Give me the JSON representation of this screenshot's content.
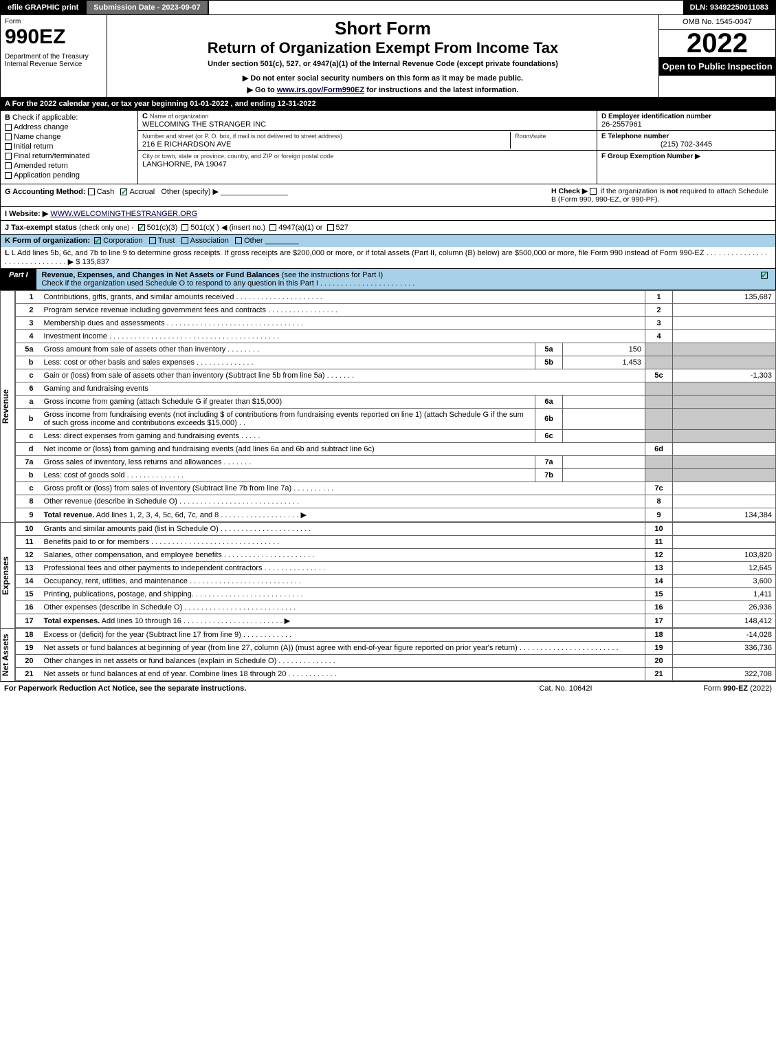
{
  "topbar": {
    "efile": "efile GRAPHIC print",
    "submission_label": "Submission Date - 2023-09-07",
    "dln": "DLN: 93492250011083"
  },
  "header": {
    "form_label": "Form",
    "form_number": "990EZ",
    "dept": "Department of the Treasury",
    "irs": "Internal Revenue Service",
    "short_form": "Short Form",
    "title": "Return of Organization Exempt From Income Tax",
    "under": "Under section 501(c), 527, or 4947(a)(1) of the Internal Revenue Code (except private foundations)",
    "warn": "▶ Do not enter social security numbers on this form as it may be made public.",
    "goto_pre": "▶ Go to ",
    "goto_link": "www.irs.gov/Form990EZ",
    "goto_post": " for instructions and the latest information.",
    "omb": "OMB No. 1545-0047",
    "year": "2022",
    "open": "Open to Public Inspection"
  },
  "lineA": "A  For the 2022 calendar year, or tax year beginning 01-01-2022 , and ending 12-31-2022",
  "secB": {
    "label": "B",
    "check_label": "Check if applicable:",
    "opts": [
      "Address change",
      "Name change",
      "Initial return",
      "Final return/terminated",
      "Amended return",
      "Application pending"
    ]
  },
  "secC": {
    "c_label": "C",
    "name_label": "Name of organization",
    "name": "WELCOMING THE STRANGER INC",
    "street_label": "Number and street (or P. O. box, if mail is not delivered to street address)",
    "room_label": "Room/suite",
    "street": "216 E RICHARDSON AVE",
    "city_label": "City or town, state or province, country, and ZIP or foreign postal code",
    "city": "LANGHORNE, PA  19047"
  },
  "secDE": {
    "d_label": "D Employer identification number",
    "ein": "26-2557961",
    "e_label": "E Telephone number",
    "phone": "(215) 702-3445",
    "f_label": "F Group Exemption Number  ▶"
  },
  "secG": {
    "label": "G Accounting Method:",
    "cash": "Cash",
    "accrual": "Accrual",
    "other": "Other (specify) ▶"
  },
  "secH": {
    "text1": "H  Check ▶",
    "text2": "if the organization is ",
    "not": "not",
    "text3": " required to attach Schedule B (Form 990, 990-EZ, or 990-PF)."
  },
  "secI": {
    "label": "I Website: ▶",
    "url": "WWW.WELCOMINGTHESTRANGER.ORG"
  },
  "secJ": {
    "label": "J Tax-exempt status",
    "sub": "(check only one) -",
    "o1": "501(c)(3)",
    "o2": "501(c)(  ) ◀ (insert no.)",
    "o3": "4947(a)(1) or",
    "o4": "527"
  },
  "secK": {
    "label": "K Form of organization:",
    "o1": "Corporation",
    "o2": "Trust",
    "o3": "Association",
    "o4": "Other"
  },
  "secL": {
    "text": "L Add lines 5b, 6c, and 7b to line 9 to determine gross receipts. If gross receipts are $200,000 or more, or if total assets (Part II, column (B) below) are $500,000 or more, file Form 990 instead of Form 990-EZ . . . . . . . . . . . . . . . . . . . . . . . . . . . . . . ▶ $ ",
    "amount": "135,837"
  },
  "part1": {
    "tab": "Part I",
    "title": "Revenue, Expenses, and Changes in Net Assets or Fund Balances",
    "title_sub": "(see the instructions for Part I)",
    "check_line": "Check if the organization used Schedule O to respond to any question in this Part I . . . . . . . . . . . . . . . . . . . . . . ."
  },
  "sections": {
    "revenue": "Revenue",
    "expenses": "Expenses",
    "netassets": "Net Assets"
  },
  "lines": [
    {
      "n": "1",
      "d": "Contributions, gifts, grants, and similar amounts received . . . . . . . . . . . . . . . . . . . . .",
      "rn": "1",
      "amt": "135,687"
    },
    {
      "n": "2",
      "d": "Program service revenue including government fees and contracts . . . . . . . . . . . . . . . . .",
      "rn": "2",
      "amt": ""
    },
    {
      "n": "3",
      "d": "Membership dues and assessments . . . . . . . . . . . . . . . . . . . . . . . . . . . . . . . . .",
      "rn": "3",
      "amt": ""
    },
    {
      "n": "4",
      "d": "Investment income . . . . . . . . . . . . . . . . . . . . . . . . . . . . . . . . . . . . . . . . .",
      "rn": "4",
      "amt": ""
    },
    {
      "n": "5a",
      "d": "Gross amount from sale of assets other than inventory . . . . . . . .",
      "sub": "5a",
      "subval": "150",
      "shade_r": true
    },
    {
      "n": "b",
      "d": "Less: cost or other basis and sales expenses . . . . . . . . . . . . . .",
      "sub": "5b",
      "subval": "1,453",
      "shade_r": true
    },
    {
      "n": "c",
      "d": "Gain or (loss) from sale of assets other than inventory (Subtract line 5b from line 5a) . . . . . . .",
      "rn": "5c",
      "amt": "-1,303"
    },
    {
      "n": "6",
      "d": "Gaming and fundraising events",
      "shade_r": true,
      "blank_r": true
    },
    {
      "n": "a",
      "d": "Gross income from gaming (attach Schedule G if greater than $15,000)",
      "sub": "6a",
      "subval": "",
      "shade_r": true
    },
    {
      "n": "b",
      "d": "Gross income from fundraising events (not including $                             of contributions from fundraising events reported on line 1) (attach Schedule G if the sum of such gross income and contributions exceeds $15,000)   .  .",
      "sub": "6b",
      "subval": "",
      "shade_r": true
    },
    {
      "n": "c",
      "d": "Less: direct expenses from gaming and fundraising events    . . . . .",
      "sub": "6c",
      "subval": "",
      "shade_r": true
    },
    {
      "n": "d",
      "d": "Net income or (loss) from gaming and fundraising events (add lines 6a and 6b and subtract line 6c)",
      "rn": "6d",
      "amt": ""
    },
    {
      "n": "7a",
      "d": "Gross sales of inventory, less returns and allowances . . . . . . .",
      "sub": "7a",
      "subval": "",
      "shade_r": true
    },
    {
      "n": "b",
      "d": "Less: cost of goods sold          .   .   .   .   .   .   .   .   .   .   .   .   .   .",
      "sub": "7b",
      "subval": "",
      "shade_r": true
    },
    {
      "n": "c",
      "d": "Gross profit or (loss) from sales of inventory (Subtract line 7b from line 7a) . . . . . . . . . .",
      "rn": "7c",
      "amt": ""
    },
    {
      "n": "8",
      "d": "Other revenue (describe in Schedule O) . . . . . . . . . . . . . . . . . . . . . . . . . . . . .",
      "rn": "8",
      "amt": ""
    },
    {
      "n": "9",
      "d": "<b>Total revenue.</b> Add lines 1, 2, 3, 4, 5c, 6d, 7c, and 8  . . . . . . . . . . . . . . . . . . . ▶",
      "rn": "9",
      "amt": "134,384",
      "bold": true
    }
  ],
  "exp_lines": [
    {
      "n": "10",
      "d": "Grants and similar amounts paid (list in Schedule O) . . . . . . . . . . . . . . . . . . . . . .",
      "rn": "10",
      "amt": ""
    },
    {
      "n": "11",
      "d": "Benefits paid to or for members     . . . . . . . . . . . . . . . . . . . . . . . . . . . . . . .",
      "rn": "11",
      "amt": ""
    },
    {
      "n": "12",
      "d": "Salaries, other compensation, and employee benefits . . . . . . . . . . . . . . . . . . . . . .",
      "rn": "12",
      "amt": "103,820"
    },
    {
      "n": "13",
      "d": "Professional fees and other payments to independent contractors . . . . . . . . . . . . . . .",
      "rn": "13",
      "amt": "12,645"
    },
    {
      "n": "14",
      "d": "Occupancy, rent, utilities, and maintenance . . . . . . . . . . . . . . . . . . . . . . . . . . .",
      "rn": "14",
      "amt": "3,600"
    },
    {
      "n": "15",
      "d": "Printing, publications, postage, and shipping. . . . . . . . . . . . . . . . . . . . . . . . . . .",
      "rn": "15",
      "amt": "1,411"
    },
    {
      "n": "16",
      "d": "Other expenses (describe in Schedule O)    . . . . . . . . . . . . . . . . . . . . . . . . . . .",
      "rn": "16",
      "amt": "26,936"
    },
    {
      "n": "17",
      "d": "<b>Total expenses.</b> Add lines 10 through 16    . . . . . . . . . . . . . . . . . . . . . . . . ▶",
      "rn": "17",
      "amt": "148,412",
      "bold": true
    }
  ],
  "na_lines": [
    {
      "n": "18",
      "d": "Excess or (deficit) for the year (Subtract line 17 from line 9)        .   .   .   .   .   .   .   .   .   .   .   .",
      "rn": "18",
      "amt": "-14,028"
    },
    {
      "n": "19",
      "d": "Net assets or fund balances at beginning of year (from line 27, column (A)) (must agree with end-of-year figure reported on prior year's return) . . . . . . . . . . . . . . . . . . . . . . . .",
      "rn": "19",
      "amt": "336,736"
    },
    {
      "n": "20",
      "d": "Other changes in net assets or fund balances (explain in Schedule O) . . . . . . . . . . . . . .",
      "rn": "20",
      "amt": ""
    },
    {
      "n": "21",
      "d": "Net assets or fund balances at end of year. Combine lines 18 through 20 . . . . . . . . . . . .",
      "rn": "21",
      "amt": "322,708"
    }
  ],
  "footer": {
    "left": "For Paperwork Reduction Act Notice, see the separate instructions.",
    "center": "Cat. No. 10642I",
    "right_pre": "Form ",
    "right_form": "990-EZ",
    "right_year": " (2022)"
  },
  "colors": {
    "header_blue": "#a8d0e8",
    "shade": "#c8c8c8",
    "check_green": "#00aa55"
  }
}
